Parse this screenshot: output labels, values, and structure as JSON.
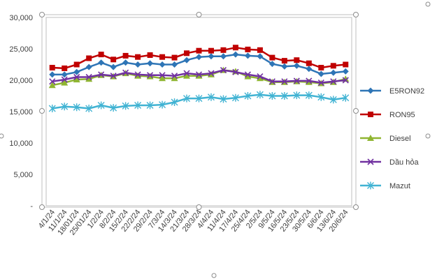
{
  "chart_data": {
    "type": "line",
    "title": "",
    "xlabel": "",
    "ylabel": "",
    "ylim": [
      0,
      30000
    ],
    "yticks": [
      0,
      5000,
      10000,
      15000,
      20000,
      25000,
      30000
    ],
    "ytick_labels": [
      "-",
      "5,000",
      "10,000",
      "15,000",
      "20,000",
      "25,000",
      "30,000"
    ],
    "grid": false,
    "legend_position": "right",
    "categories": [
      "4/1/24",
      "11/1/24",
      "18/01/24",
      "25/01/24",
      "1/2/24",
      "8/2/24",
      "15/2/24",
      "22/2/24",
      "29/2/24",
      "7/3/24",
      "14/3/24",
      "21/3/24",
      "28/3/24",
      "4/4/24",
      "11/4/24",
      "17/4/24",
      "25/4/24",
      "2/5/24",
      "9/5/24",
      "16/5/24",
      "23/5/24",
      "30/5/24",
      "6/6/24",
      "13/6/24",
      "20/6/24"
    ],
    "series": [
      {
        "name": "E5RON92",
        "color": "#2e75b6",
        "marker": "diamond",
        "values": [
          20900,
          20900,
          21300,
          22100,
          22800,
          22100,
          22800,
          22500,
          22700,
          22500,
          22500,
          23200,
          23700,
          23800,
          23800,
          24100,
          23900,
          23800,
          22600,
          22200,
          22300,
          21800,
          21000,
          21200,
          21400
        ]
      },
      {
        "name": "RON95",
        "color": "#c00000",
        "marker": "square",
        "values": [
          22000,
          21900,
          22500,
          23500,
          24100,
          23300,
          23900,
          23700,
          24000,
          23700,
          23600,
          24300,
          24700,
          24700,
          24800,
          25200,
          24900,
          24800,
          23600,
          23100,
          23200,
          22700,
          22000,
          22300,
          22500
        ]
      },
      {
        "name": "Diesel",
        "color": "#8fb531",
        "marker": "triangle",
        "values": [
          19200,
          19600,
          20100,
          20200,
          20800,
          20600,
          21100,
          20700,
          20600,
          20300,
          20300,
          20700,
          20700,
          20900,
          21600,
          21400,
          20600,
          20300,
          19700,
          19700,
          19800,
          19700,
          19500,
          19700,
          20200
        ]
      },
      {
        "name": "Dầu hỏa",
        "color": "#7030a0",
        "marker": "x",
        "values": [
          19800,
          20100,
          20500,
          20500,
          20900,
          20700,
          21200,
          20900,
          20800,
          20800,
          20700,
          21100,
          20900,
          21100,
          21600,
          21300,
          20900,
          20600,
          19800,
          19800,
          19900,
          19900,
          19600,
          19800,
          20000
        ]
      },
      {
        "name": "Mazut",
        "color": "#41b3d3",
        "marker": "star",
        "values": [
          15500,
          15800,
          15700,
          15500,
          16000,
          15600,
          15900,
          16000,
          16000,
          16100,
          16500,
          17100,
          17100,
          17300,
          17000,
          17200,
          17500,
          17700,
          17500,
          17500,
          17600,
          17600,
          17300,
          16900,
          17200
        ]
      }
    ]
  }
}
